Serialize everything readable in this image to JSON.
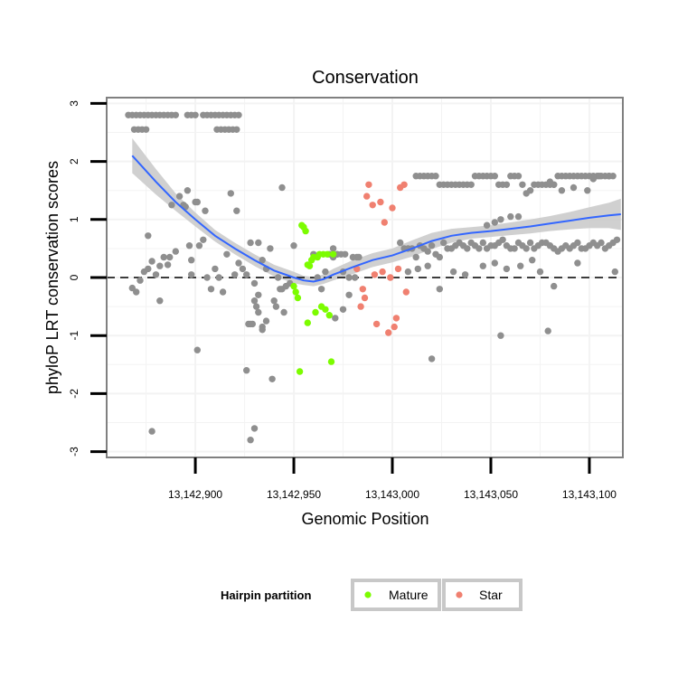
{
  "chart_data": {
    "type": "scatter",
    "title": "Conservation",
    "xlabel": "Genomic Position",
    "ylabel": "phyloP LRT conservation scores",
    "xlim": [
      13142855,
      13143117
    ],
    "ylim": [
      -3.1,
      3.1
    ],
    "x_ticks": [
      13142900,
      13142950,
      13143000,
      13143050,
      13143100
    ],
    "x_tick_labels": [
      "13,142,900",
      "13,142,950",
      "13,143,000",
      "13,143,050",
      "13,143,100"
    ],
    "y_ticks": [
      -3,
      -2,
      -1,
      0,
      1,
      2,
      3
    ],
    "y_tick_labels": [
      "-3",
      "-2",
      "-1",
      "0",
      "1",
      "2",
      "3"
    ],
    "reference_line": {
      "y": 0,
      "style": "dashed"
    },
    "colors": {
      "other": "#8f8f8f",
      "mature": "#7cfc00",
      "star": "#f08070",
      "smooth": "#3366ff",
      "band": "#c8c8c8",
      "grid": "#f3f3f3",
      "border": "#808080"
    },
    "legend": {
      "title": "Hairpin partition",
      "position": "bottom",
      "entries": [
        {
          "label": "Mature",
          "color": "#7cfc00"
        },
        {
          "label": "Star",
          "color": "#f08070"
        }
      ]
    },
    "series": [
      {
        "name": "Other",
        "x": [
          13142866,
          13142868,
          13142870,
          13142872,
          13142874,
          13142876,
          13142878,
          13142880,
          13142882,
          13142884,
          13142886,
          13142888,
          13142890,
          13142896,
          13142898,
          13142900,
          13142904,
          13142906,
          13142908,
          13142910,
          13142912,
          13142914,
          13142916,
          13142918,
          13142920,
          13142922,
          13142869,
          13142871,
          13142873,
          13142875,
          13142911,
          13142913,
          13142915,
          13142917,
          13142919,
          13142921,
          13142868,
          13142870,
          13142872,
          13142874,
          13142876,
          13142878,
          13142880,
          13142882,
          13142884,
          13142886,
          13142888,
          13142890,
          13142892,
          13142894,
          13142896,
          13142898,
          13142900,
          13142902,
          13142904,
          13142906,
          13142908,
          13142910,
          13142912,
          13142914,
          13142916,
          13142918,
          13142920,
          13142922,
          13142924,
          13142926,
          13142928,
          13142930,
          13142932,
          13142934,
          13142936,
          13142938,
          13142940,
          13142942,
          13142944,
          13142946,
          13142948,
          13142876,
          13142895,
          13142901,
          13142905,
          13142921,
          13142927,
          13142929,
          13142931,
          13142944,
          13142950,
          13142878,
          13142897,
          13142926,
          13142882,
          13142901,
          13142887,
          13142898,
          13142928,
          13142930,
          13142932,
          13142936,
          13142934,
          13142939,
          13142941,
          13142943,
          13142945,
          13142928,
          13142930,
          13142932,
          13142934,
          13142960,
          13142962,
          13142964,
          13142966,
          13142968,
          13142970,
          13142972,
          13142974,
          13142976,
          13142978,
          13142980,
          13142982,
          13142970,
          13142972,
          13142975,
          13142978,
          13142971,
          13142975,
          13142981,
          13142983,
          13143012,
          13143014,
          13143016,
          13143018,
          13143020,
          13143022,
          13143024,
          13143026,
          13143028,
          13143030,
          13143032,
          13143034,
          13143036,
          13143038,
          13143040,
          13143042,
          13143044,
          13143046,
          13143048,
          13143050,
          13143052,
          13143054,
          13143056,
          13143058,
          13143060,
          13143062,
          13143064,
          13143066,
          13143068,
          13143070,
          13143072,
          13143074,
          13143076,
          13143078,
          13143080,
          13143082,
          13143084,
          13143086,
          13143088,
          13143090,
          13143092,
          13143094,
          13143096,
          13143098,
          13143100,
          13143102,
          13143104,
          13143106,
          13143108,
          13143110,
          13143112,
          13143048,
          13143052,
          13143055,
          13143060,
          13143064,
          13143080,
          13143082,
          13143086,
          13143092,
          13143099,
          13143102,
          13143105,
          13143110,
          13143004,
          13143006,
          13143008,
          13143010,
          13143012,
          13143014,
          13143016,
          13143018,
          13143020,
          13143022,
          13143024,
          13143026,
          13143028,
          13143030,
          13143032,
          13143034,
          13143036,
          13143038,
          13143040,
          13143042,
          13143044,
          13143046,
          13143048,
          13143050,
          13143052,
          13143054,
          13143056,
          13143058,
          13143060,
          13143062,
          13143064,
          13143066,
          13143068,
          13143070,
          13143072,
          13143074,
          13143076,
          13143078,
          13143080,
          13143082,
          13143084,
          13143086,
          13143088,
          13143090,
          13143092,
          13143094,
          13143096,
          13143098,
          13143100,
          13143102,
          13143104,
          13143106,
          13143108,
          13143110,
          13143112,
          13143114,
          13143008,
          13143013,
          13143018,
          13143024,
          13143031,
          13143037,
          13143046,
          13143052,
          13143058,
          13143065,
          13143071,
          13143075,
          13143082,
          13143094,
          13143113,
          13143020,
          13143055,
          13143079
        ],
        "y": [
          2.8,
          2.8,
          2.8,
          2.8,
          2.8,
          2.8,
          2.8,
          2.8,
          2.8,
          2.8,
          2.8,
          2.8,
          2.8,
          2.8,
          2.8,
          2.8,
          2.8,
          2.8,
          2.8,
          2.8,
          2.8,
          2.8,
          2.8,
          2.8,
          2.8,
          2.8,
          2.55,
          2.55,
          2.55,
          2.55,
          2.55,
          2.55,
          2.55,
          2.55,
          2.55,
          2.55,
          -0.18,
          -0.25,
          -0.05,
          0.1,
          0.15,
          0.28,
          0.05,
          -0.4,
          0.35,
          0.22,
          1.25,
          0.45,
          1.4,
          1.25,
          1.5,
          0.05,
          1.3,
          0.55,
          0.65,
          0.0,
          -0.2,
          0.15,
          0.0,
          -0.25,
          0.4,
          1.45,
          0.05,
          0.25,
          0.15,
          0.05,
          0.6,
          -0.1,
          0.6,
          0.3,
          0.15,
          0.5,
          -0.4,
          0.0,
          -0.2,
          -0.15,
          -0.1,
          0.72,
          1.22,
          1.3,
          1.15,
          1.15,
          -0.8,
          -0.8,
          -0.5,
          1.55,
          0.55,
          -2.65,
          0.55,
          -1.6,
          0.2,
          -1.25,
          0.35,
          0.3,
          -2.8,
          -2.6,
          -0.6,
          -0.75,
          -0.85,
          -1.75,
          -0.5,
          -0.2,
          -0.6,
          -0.8,
          -0.4,
          -0.3,
          -0.9,
          0.4,
          0.0,
          -0.2,
          0.1,
          0.4,
          0.35,
          0.4,
          0.4,
          0.4,
          0.0,
          0.35,
          0.35,
          0.5,
          0.4,
          0.1,
          -0.3,
          -0.7,
          -0.55,
          0.0,
          0.35,
          1.75,
          1.75,
          1.75,
          1.75,
          1.75,
          1.75,
          1.6,
          1.6,
          1.6,
          1.6,
          1.6,
          1.6,
          1.6,
          1.6,
          1.6,
          1.75,
          1.75,
          1.75,
          1.75,
          1.75,
          1.75,
          1.6,
          1.6,
          1.6,
          1.75,
          1.75,
          1.75,
          1.6,
          1.45,
          1.5,
          1.6,
          1.6,
          1.6,
          1.6,
          1.6,
          1.6,
          1.75,
          1.75,
          1.75,
          1.75,
          1.75,
          1.75,
          1.75,
          1.75,
          1.75,
          1.75,
          1.75,
          1.75,
          1.75,
          1.75,
          1.75,
          0.9,
          0.95,
          1.0,
          1.05,
          1.05,
          1.65,
          1.6,
          1.5,
          1.55,
          1.5,
          1.7,
          1.75,
          1.75,
          0.6,
          0.5,
          0.5,
          0.5,
          0.35,
          0.55,
          0.5,
          0.45,
          0.55,
          0.4,
          0.35,
          0.6,
          0.5,
          0.5,
          0.55,
          0.6,
          0.55,
          0.5,
          0.6,
          0.55,
          0.5,
          0.6,
          0.5,
          0.55,
          0.55,
          0.6,
          0.65,
          0.55,
          0.5,
          0.5,
          0.6,
          0.55,
          0.5,
          0.6,
          0.5,
          0.55,
          0.6,
          0.6,
          0.55,
          0.5,
          0.45,
          0.5,
          0.55,
          0.5,
          0.55,
          0.6,
          0.5,
          0.5,
          0.55,
          0.6,
          0.55,
          0.6,
          0.5,
          0.55,
          0.6,
          0.65,
          0.1,
          0.15,
          0.2,
          -0.2,
          0.1,
          0.05,
          0.2,
          0.25,
          0.15,
          0.2,
          0.3,
          0.1,
          -0.15,
          0.25,
          0.1,
          -1.4,
          -1.0,
          -0.92
        ],
        "color": "#8f8f8f"
      },
      {
        "name": "Mature",
        "x": [
          13142950,
          13142951,
          13142952,
          13142953,
          13142954,
          13142955,
          13142956,
          13142957,
          13142958,
          13142959,
          13142960,
          13142961,
          13142962,
          13142963,
          13142964,
          13142965,
          13142966,
          13142967,
          13142968,
          13142969,
          13142970,
          13142957
        ],
        "y": [
          -0.15,
          -0.25,
          -0.35,
          -1.62,
          0.9,
          0.87,
          0.8,
          -0.78,
          0.2,
          0.3,
          0.35,
          -0.6,
          0.35,
          0.4,
          -0.5,
          0.4,
          -0.55,
          0.4,
          -0.65,
          -1.45,
          0.4,
          0.22
        ],
        "color": "#7cfc00"
      },
      {
        "name": "Star",
        "x": [
          13142982,
          13142984,
          13142986,
          13142988,
          13142990,
          13142992,
          13142994,
          13142996,
          13142998,
          13143000,
          13143002,
          13143004,
          13143006,
          13142985,
          13142987,
          13142991,
          13142995,
          13142999,
          13143001,
          13143003,
          13143007
        ],
        "y": [
          0.15,
          -0.5,
          -0.35,
          1.6,
          1.25,
          -0.8,
          1.3,
          0.95,
          -0.95,
          1.2,
          -0.7,
          1.55,
          1.6,
          -0.2,
          1.4,
          0.05,
          0.1,
          0.0,
          -0.85,
          0.15,
          -0.25
        ],
        "color": "#f08070"
      }
    ],
    "smooth": {
      "x": [
        13142868,
        13142880,
        13142890,
        13142900,
        13142910,
        13142920,
        13142930,
        13142940,
        13142950,
        13142955,
        13142960,
        13142965,
        13142970,
        13142980,
        13142990,
        13143000,
        13143010,
        13143020,
        13143030,
        13143040,
        13143050,
        13143060,
        13143070,
        13143080,
        13143090,
        13143100,
        13143110,
        13143116
      ],
      "y": [
        2.1,
        1.65,
        1.3,
        1.0,
        0.72,
        0.5,
        0.3,
        0.12,
        0.0,
        -0.05,
        -0.07,
        -0.03,
        0.05,
        0.18,
        0.3,
        0.38,
        0.5,
        0.63,
        0.72,
        0.77,
        0.8,
        0.84,
        0.88,
        0.93,
        0.98,
        1.03,
        1.07,
        1.09
      ],
      "band": [
        0.3,
        0.22,
        0.15,
        0.12,
        0.1,
        0.1,
        0.1,
        0.1,
        0.1,
        0.08,
        0.08,
        0.08,
        0.1,
        0.12,
        0.12,
        0.12,
        0.14,
        0.14,
        0.12,
        0.1,
        0.1,
        0.11,
        0.12,
        0.13,
        0.15,
        0.18,
        0.22,
        0.27
      ]
    }
  }
}
